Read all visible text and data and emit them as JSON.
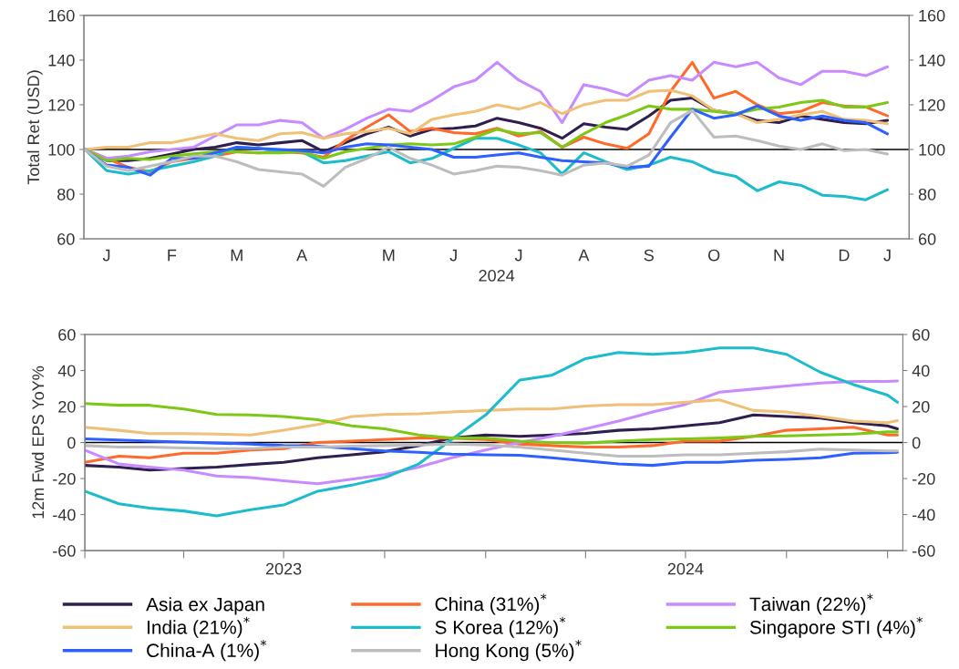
{
  "chart_data": [
    {
      "type": "line",
      "ylabel": "Total Ret (USD)",
      "xlabel": "2024",
      "ylim": [
        60,
        160
      ],
      "yticks": [
        60,
        80,
        100,
        120,
        140,
        160
      ],
      "y2lim": [
        60,
        160
      ],
      "y2ticks": [
        60,
        80,
        100,
        120,
        140,
        160
      ],
      "categories": [
        null,
        "J",
        null,
        null,
        "F",
        null,
        null,
        "M",
        null,
        null,
        "A",
        null,
        null,
        null,
        "M",
        null,
        null,
        "J",
        null,
        null,
        "J",
        null,
        null,
        "A",
        null,
        null,
        "S",
        null,
        null,
        "O",
        null,
        null,
        "N",
        null,
        null,
        "D",
        null,
        "J"
      ],
      "ref_lines": [
        {
          "axis": "y",
          "value": 100,
          "color": "#000000"
        }
      ],
      "grid": false,
      "legend": "bottom",
      "marker": "none",
      "line_style": "solid",
      "series": [
        {
          "name": "Asia ex Japan",
          "color": "#2e1f4f",
          "values": [
            100,
            95,
            95,
            96,
            98,
            100,
            101,
            103,
            102,
            103,
            104,
            99,
            103,
            107,
            110,
            106,
            109,
            109.5,
            110.5,
            114,
            112,
            109.5,
            105,
            111.5,
            110,
            109,
            115,
            122,
            123,
            117.5,
            116,
            113,
            112,
            115,
            113.5,
            112,
            111.5,
            113
          ]
        },
        {
          "name": "China (31%)$^{*}$",
          "color": "#ff6a2a",
          "values": [
            100,
            96,
            92,
            90,
            94.5,
            96,
            97,
            99,
            98.5,
            99,
            98.5,
            96.5,
            104,
            110,
            115.5,
            108,
            109.5,
            107.5,
            107,
            109.5,
            106,
            108,
            101,
            105.5,
            102.5,
            100.5,
            107,
            126,
            139,
            123,
            126,
            120,
            116,
            117,
            121,
            119.5,
            119,
            115
          ]
        },
        {
          "name": "Taiwan (22%)$^{*}$",
          "color": "#c88bff",
          "values": [
            100,
            96,
            97,
            99,
            100,
            101,
            106,
            111,
            111,
            113,
            112,
            105,
            109,
            114,
            118,
            117,
            122,
            128,
            131,
            139,
            131,
            126,
            112,
            129,
            127,
            124,
            131,
            133,
            131,
            139,
            137,
            139,
            132,
            129,
            135,
            135,
            133,
            137
          ]
        },
        {
          "name": "India (21%)$^{*}$",
          "color": "#f0c078",
          "values": [
            100,
            101,
            101,
            103,
            103,
            105,
            107,
            105,
            104,
            107,
            107.5,
            105,
            107,
            108,
            109.5,
            107,
            113.5,
            115.5,
            117,
            120,
            118,
            121,
            116,
            120,
            122,
            122,
            126,
            126.5,
            124,
            117.5,
            116,
            112,
            113.5,
            115.5,
            117,
            113.5,
            113,
            111.5
          ]
        },
        {
          "name": "S Korea (12%)$^{*}$",
          "color": "#1dbccc",
          "values": [
            100,
            90.5,
            89,
            90.5,
            92.5,
            94.5,
            97,
            101,
            100.5,
            99,
            99,
            94,
            95,
            97,
            99,
            94,
            96,
            100.5,
            105,
            105,
            102,
            98.5,
            89,
            98.5,
            94.5,
            91,
            93,
            96.5,
            94.5,
            90,
            88,
            81.5,
            85.5,
            84,
            79.5,
            79,
            77.5,
            82
          ]
        },
        {
          "name": "Singapore STI (4%)$^{*}$",
          "color": "#7dc816",
          "values": [
            100,
            95,
            96,
            95.5,
            97,
            98,
            99,
            99,
            98.5,
            98.5,
            99,
            96,
            99,
            100.5,
            102,
            102.5,
            102,
            102.5,
            105.5,
            109,
            107,
            107.5,
            101,
            107,
            112,
            115.5,
            119.5,
            118,
            118,
            117,
            116,
            118,
            119,
            121,
            122,
            119,
            119,
            121
          ]
        },
        {
          "name": "China-A (1%)$^{*}$",
          "color": "#2e60ff",
          "values": [
            100,
            93,
            92,
            88.5,
            96,
            96,
            98.5,
            101,
            100.5,
            100,
            99.5,
            98.5,
            101,
            102.5,
            102,
            101,
            100,
            96.5,
            96.5,
            97.5,
            98.5,
            96.5,
            95,
            94.5,
            94,
            92,
            92.5,
            105.5,
            118,
            114,
            115.5,
            119.5,
            115,
            113,
            115,
            113,
            112,
            107
          ]
        },
        {
          "name": "Hong Kong (5%)$^{*}$",
          "color": "#bdbdbd",
          "values": [
            100,
            92.5,
            90.5,
            92.5,
            94.5,
            97,
            97,
            94.5,
            91,
            90,
            89,
            83.5,
            92,
            96,
            101,
            96,
            93,
            89,
            90.5,
            92.5,
            92,
            90.5,
            88.5,
            93,
            94,
            92.5,
            97.5,
            112,
            117.5,
            105.5,
            106,
            104,
            101.5,
            100,
            102.5,
            99.5,
            100,
            98
          ]
        }
      ]
    },
    {
      "type": "line",
      "ylabel": "12m Fwd EPS YoY%",
      "xlim": [
        "2023-01-01",
        "2025-01-15"
      ],
      "ylim": [
        -60,
        60
      ],
      "yticks": [
        -60,
        -40,
        -20,
        0,
        20,
        40,
        60
      ],
      "y2lim": [
        -60,
        60
      ],
      "y2ticks": [
        -60,
        -40,
        -20,
        0,
        20,
        40,
        60
      ],
      "xticks": [
        {
          "value": "2023-01-01",
          "label": null
        },
        {
          "value": "2023-04-01",
          "label": null
        },
        {
          "value": "2023-07-01",
          "label": "2023"
        },
        {
          "value": "2023-10-01",
          "label": null
        },
        {
          "value": "2024-01-01",
          "label": null
        },
        {
          "value": "2024-04-01",
          "label": null
        },
        {
          "value": "2024-07-01",
          "label": "2024"
        },
        {
          "value": "2024-10-01",
          "label": null
        },
        {
          "value": "2025-01-01",
          "label": null
        }
      ],
      "ref_lines": [
        {
          "axis": "y",
          "value": 0,
          "color": "#000000"
        }
      ],
      "grid": false,
      "legend": "bottom",
      "marker": "none",
      "line_style": "solid",
      "x": [
        "2023-01-01",
        "2023-02-01",
        "2023-03-01",
        "2023-04-01",
        "2023-05-01",
        "2023-06-01",
        "2023-07-01",
        "2023-08-01",
        "2023-09-01",
        "2023-10-01",
        "2023-11-01",
        "2023-12-01",
        "2024-01-01",
        "2024-02-01",
        "2024-03-01",
        "2024-04-01",
        "2024-05-01",
        "2024-06-01",
        "2024-07-01",
        "2024-08-01",
        "2024-09-01",
        "2024-10-01",
        "2024-11-01",
        "2024-12-01",
        "2025-01-01",
        "2025-01-10"
      ],
      "series": [
        {
          "name": "Asia ex Japan",
          "color": "#2e1f4f",
          "values": [
            -12.7,
            -13.6,
            -15.3,
            -14.4,
            -13.6,
            -12.2,
            -11,
            -8.5,
            -6.8,
            -5.1,
            -1.7,
            2.5,
            4.2,
            3.4,
            4.2,
            5.1,
            6.8,
            7.6,
            9.3,
            11,
            15.3,
            14.4,
            13.6,
            11,
            9.3,
            7.6
          ]
        },
        {
          "name": "China (31%)$^{*}$",
          "color": "#ff6a2a",
          "values": [
            -11,
            -7.6,
            -8.5,
            -5.9,
            -5.9,
            -4.2,
            -3.4,
            0,
            0.8,
            1.7,
            2.5,
            2.5,
            1.7,
            -0.8,
            -1.7,
            -2.5,
            -2.5,
            -1.7,
            0.8,
            0.8,
            3.4,
            6.8,
            7.6,
            8.5,
            4.2,
            4.2
          ]
        },
        {
          "name": "Taiwan (22%)$^{*}$",
          "color": "#c88bff",
          "values": [
            -4.2,
            -11.9,
            -13.6,
            -15.3,
            -18.6,
            -19.5,
            -21.2,
            -22.9,
            -20.3,
            -17.8,
            -13.6,
            -8.5,
            -4.2,
            0,
            3.4,
            7.6,
            11.9,
            17,
            21.2,
            28,
            29.7,
            31.4,
            33,
            33.9,
            33.9,
            34.2
          ]
        },
        {
          "name": "India (21%)$^{*}$",
          "color": "#f0c078",
          "values": [
            8.5,
            6.8,
            5,
            5,
            4.7,
            4.2,
            6.8,
            10,
            14.4,
            15.6,
            16,
            17,
            17.8,
            18.6,
            18.6,
            20.3,
            21,
            21,
            22.4,
            23.7,
            17.8,
            17,
            14.4,
            11.9,
            11,
            12.2
          ]
        },
        {
          "name": "S Korea (12%)$^{*}$",
          "color": "#1dbccc",
          "values": [
            -27,
            -34,
            -36.4,
            -38,
            -40.7,
            -37.3,
            -34.7,
            -27,
            -23.7,
            -19.5,
            -11.9,
            1.7,
            15.3,
            34.7,
            37.3,
            46.6,
            50,
            49,
            50,
            52.5,
            52.5,
            49,
            39,
            32.2,
            26.3,
            22.4
          ]
        },
        {
          "name": "Singapore STI (4%)$^{*}$",
          "color": "#7dc816",
          "values": [
            21.7,
            20.7,
            20.7,
            18.6,
            15.6,
            15.3,
            14.4,
            12.7,
            9.3,
            7.6,
            4.2,
            2.5,
            2.5,
            0.8,
            0,
            -0.3,
            0.8,
            1.7,
            2,
            2.5,
            3.4,
            3.7,
            4.2,
            4.7,
            5.9,
            5.9
          ]
        },
        {
          "name": "China-A (1%)$^{*}$",
          "color": "#2e60ff",
          "values": [
            2,
            1.4,
            0.8,
            0.3,
            -0.3,
            -0.8,
            -1.7,
            -2,
            -3.4,
            -4.7,
            -5.4,
            -6.4,
            -6.8,
            -7.1,
            -8.5,
            -10.2,
            -11.9,
            -12.7,
            -11,
            -11,
            -9.8,
            -9.3,
            -8.5,
            -5.9,
            -5.6,
            -5.4
          ]
        },
        {
          "name": "Hong Kong (5%)$^{*}$",
          "color": "#bdbdbd",
          "values": [
            -1.7,
            -2.5,
            -2.5,
            -3,
            -3.4,
            -3.4,
            -2.5,
            -2.5,
            -2,
            -1.7,
            -1.4,
            -0.8,
            -1.4,
            -2.5,
            -4.2,
            -5.9,
            -7.6,
            -7.6,
            -6.8,
            -6.8,
            -5.9,
            -5.1,
            -3.7,
            -4.2,
            -4.7,
            -4.7
          ]
        }
      ]
    }
  ]
}
